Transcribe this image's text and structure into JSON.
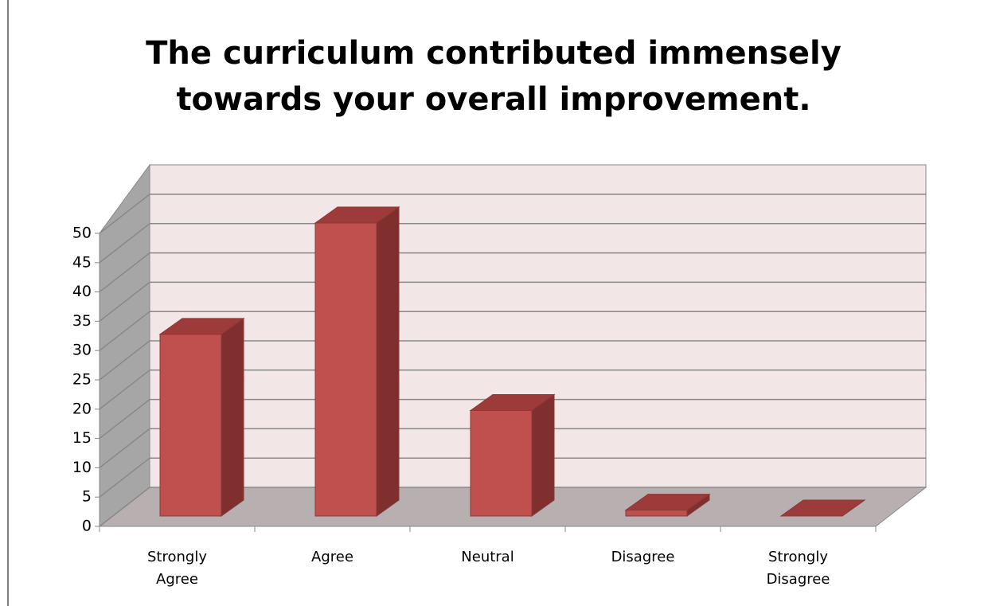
{
  "chart_data": {
    "type": "bar3d",
    "title": "The curriculum contributed immensely towards your overall improvement.",
    "categories": [
      "Strongly Agree",
      "Agree",
      "Neutral",
      "Disagree",
      "Strongly Disagree"
    ],
    "values": [
      31,
      50,
      18,
      1,
      0
    ],
    "color": "#c0504d",
    "ylim": [
      0,
      50
    ],
    "yticks": [
      0,
      5,
      10,
      15,
      20,
      25,
      30,
      35,
      40,
      45,
      50
    ],
    "grid": true
  }
}
